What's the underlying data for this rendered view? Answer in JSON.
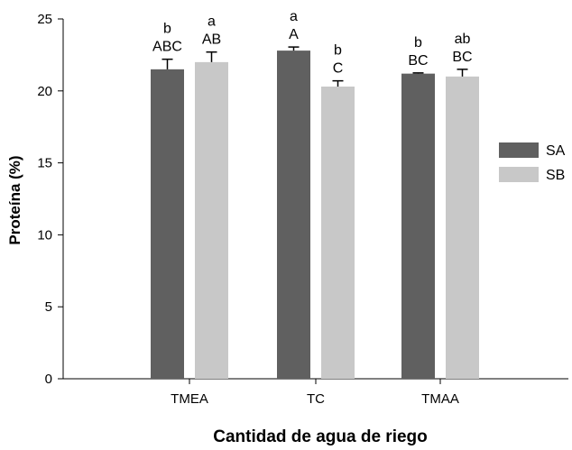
{
  "chart_data": {
    "type": "bar",
    "title": "",
    "xlabel": "Cantidad de agua de riego",
    "ylabel": "Proteína (%)",
    "ylim": [
      0,
      25
    ],
    "yticks": [
      0,
      5,
      10,
      15,
      20,
      25
    ],
    "categories": [
      "TMEA",
      "TC",
      "TMAA"
    ],
    "series": [
      {
        "name": "SA",
        "color": "#606060",
        "values": [
          21.5,
          22.8,
          21.2
        ],
        "errors": [
          0.7,
          0.25,
          0.05
        ],
        "labels_top": [
          "b",
          "a",
          "b"
        ],
        "labels_bottom": [
          "ABC",
          "A",
          "BC"
        ]
      },
      {
        "name": "SB",
        "color": "#c8c8c8",
        "values": [
          22.0,
          20.3,
          21.0
        ],
        "errors": [
          0.7,
          0.4,
          0.5
        ],
        "labels_top": [
          "a",
          "b",
          "ab"
        ],
        "labels_bottom": [
          "AB",
          "C",
          "BC"
        ]
      }
    ],
    "legend": "right",
    "grid": false
  }
}
